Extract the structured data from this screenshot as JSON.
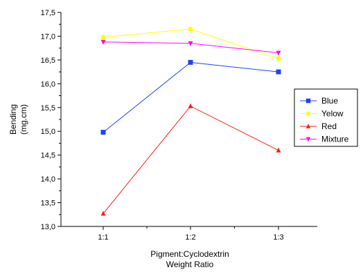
{
  "chart_data": {
    "type": "line",
    "categories": [
      "1:1",
      "1:2",
      "1:3"
    ],
    "series": [
      {
        "name": "Blue",
        "color": "#1f3fff",
        "marker": "square",
        "values": [
          14.98,
          16.45,
          16.25
        ]
      },
      {
        "name": "Yelow",
        "color": "#ffff00",
        "marker": "circle",
        "values": [
          16.98,
          17.15,
          16.53
        ]
      },
      {
        "name": "Red",
        "color": "#ff1a1a",
        "marker": "triangle-up",
        "values": [
          13.27,
          15.53,
          14.6
        ]
      },
      {
        "name": "Mixture",
        "color": "#ff00ff",
        "marker": "triangle-down",
        "values": [
          16.88,
          16.85,
          16.65
        ]
      }
    ],
    "xlabel": [
      "Pigment:Cyclodextrin",
      "Weight Ratio"
    ],
    "ylabel": [
      "Bending",
      "(mg.cm)"
    ],
    "ylim": [
      13.0,
      17.5
    ],
    "yticks": [
      "13,0",
      "13,5",
      "14,0",
      "14,5",
      "15,0",
      "15,5",
      "16,0",
      "16,5",
      "17,0",
      "17,5"
    ],
    "legend_position": "right",
    "grid": false
  }
}
